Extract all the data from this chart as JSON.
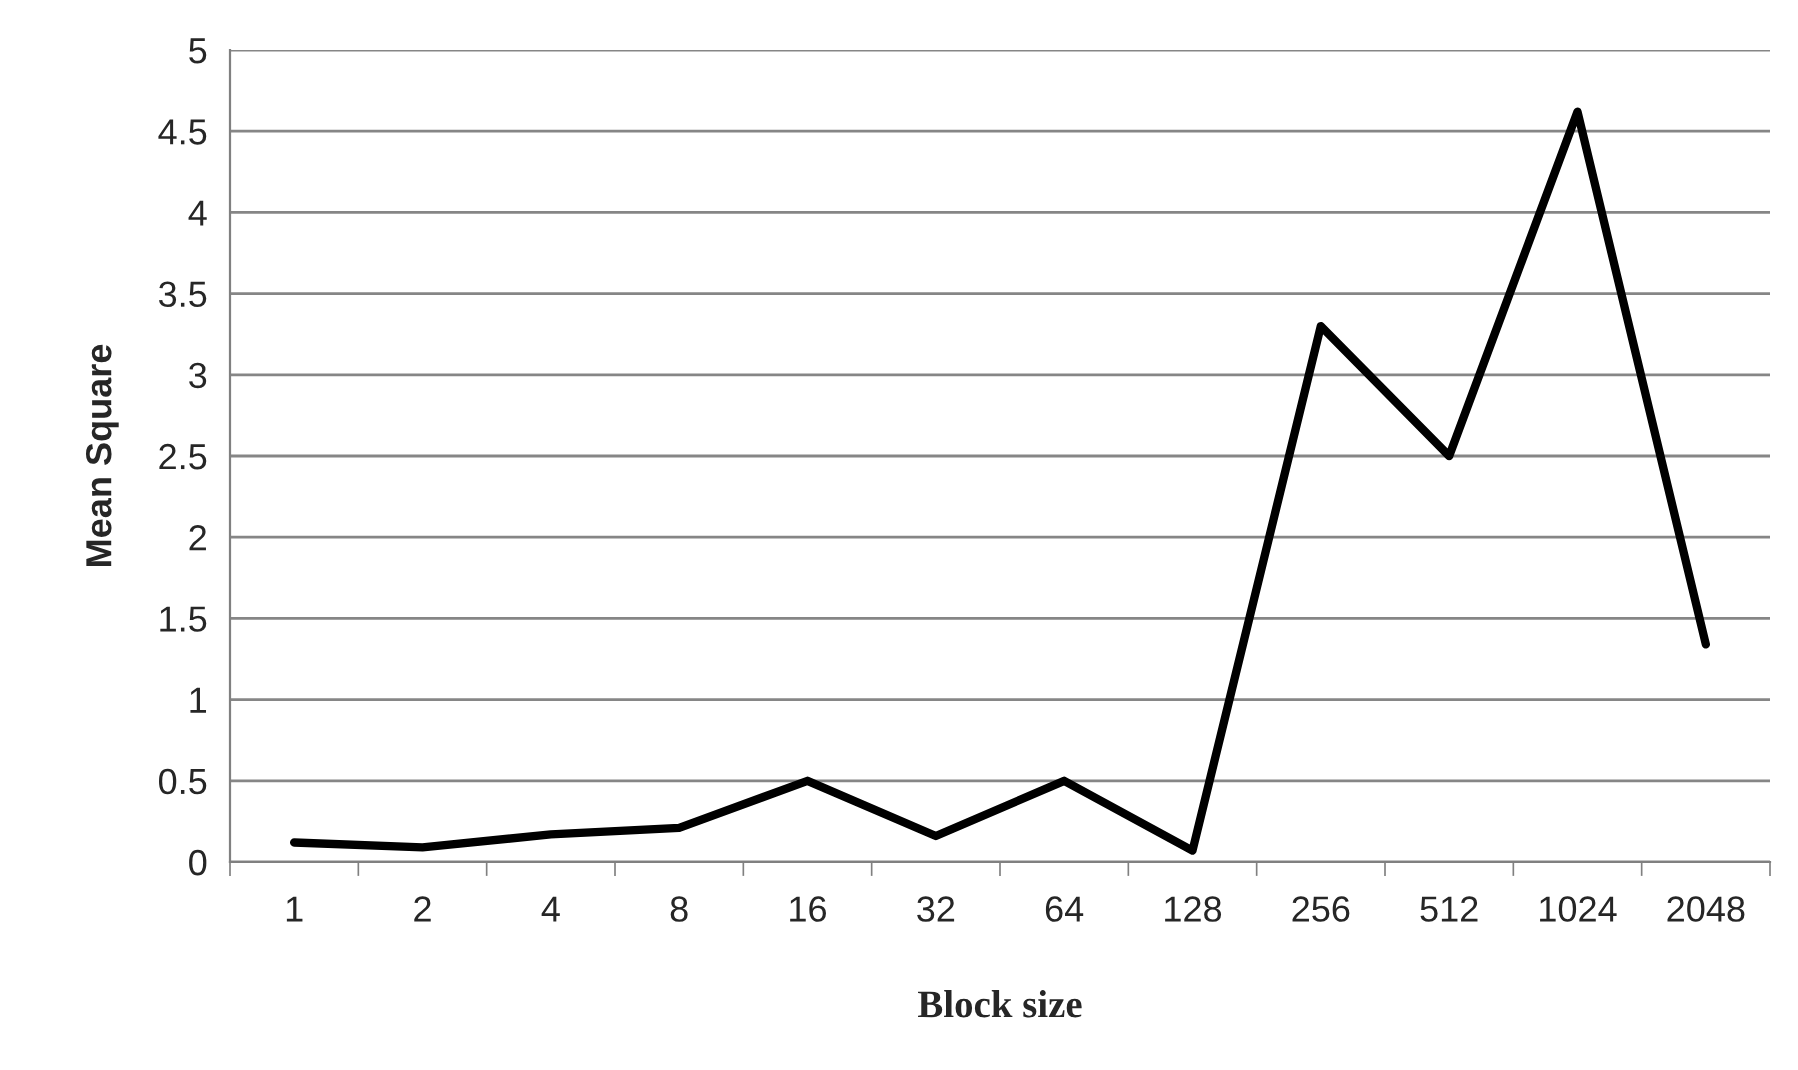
{
  "chart_data": {
    "type": "line",
    "xlabel": "Block size",
    "ylabel": "Mean Square",
    "categories": [
      "1",
      "2",
      "4",
      "8",
      "16",
      "32",
      "64",
      "128",
      "256",
      "512",
      "1024",
      "2048"
    ],
    "series": [
      {
        "color": "#000000",
        "values": [
          0.12,
          0.09,
          0.17,
          0.21,
          0.5,
          0.16,
          0.5,
          0.07,
          3.3,
          2.5,
          4.62,
          1.34
        ]
      }
    ],
    "ylim": [
      0,
      5
    ],
    "yticks": [
      0,
      0.5,
      1,
      1.5,
      2,
      2.5,
      3,
      3.5,
      4,
      4.5,
      5
    ],
    "grid": "y",
    "marker": "none",
    "line_style": "solid"
  }
}
